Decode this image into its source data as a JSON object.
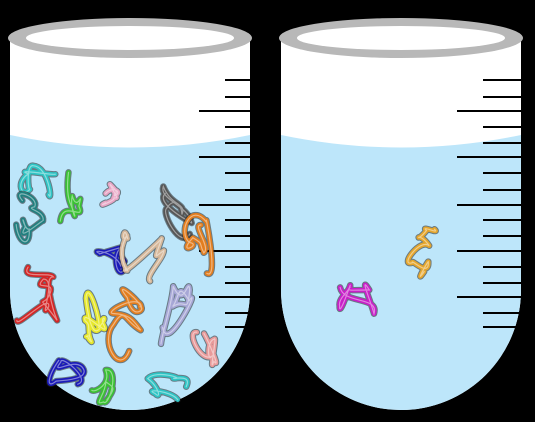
{
  "background_color": "#000000",
  "tube_colors": {
    "glass": "#ffffff",
    "rim": "#b8b8b8",
    "rim_inner": "#ffffff",
    "liquid": "#bde6fa",
    "scale": "#000000"
  },
  "tubes": [
    {
      "id": "left",
      "strands": [
        {
          "color": "#2ec4c4",
          "icon": "protein-chain-cyan"
        },
        {
          "color": "#39c232",
          "icon": "protein-chain-green"
        },
        {
          "color": "#e8a5c4",
          "icon": "protein-chain-pink"
        },
        {
          "color": "#555555",
          "icon": "protein-chain-grey"
        },
        {
          "color": "#1f7f7f",
          "icon": "protein-chain-teal"
        },
        {
          "color": "#1a1ab8",
          "icon": "protein-chain-blue"
        },
        {
          "color": "#d6b89a",
          "icon": "protein-chain-tan"
        },
        {
          "color": "#e27d1e",
          "icon": "protein-chain-orange"
        },
        {
          "color": "#d42424",
          "icon": "protein-chain-red"
        },
        {
          "color": "#e7e82a",
          "icon": "protein-chain-yellow"
        },
        {
          "color": "#e27d1e",
          "icon": "protein-chain-orange-2"
        },
        {
          "color": "#a7a7d6",
          "icon": "protein-chain-lavender"
        },
        {
          "color": "#e89a9a",
          "icon": "protein-chain-salmon"
        },
        {
          "color": "#1a1ab8",
          "icon": "protein-chain-navy"
        },
        {
          "color": "#39c232",
          "icon": "protein-chain-green-2"
        },
        {
          "color": "#2ec4c4",
          "icon": "protein-chain-cyan-2"
        }
      ]
    },
    {
      "id": "right",
      "strands": [
        {
          "color": "#e5a62c",
          "icon": "protein-chain-gold"
        },
        {
          "color": "#c81fc8",
          "icon": "protein-chain-magenta"
        }
      ]
    }
  ]
}
